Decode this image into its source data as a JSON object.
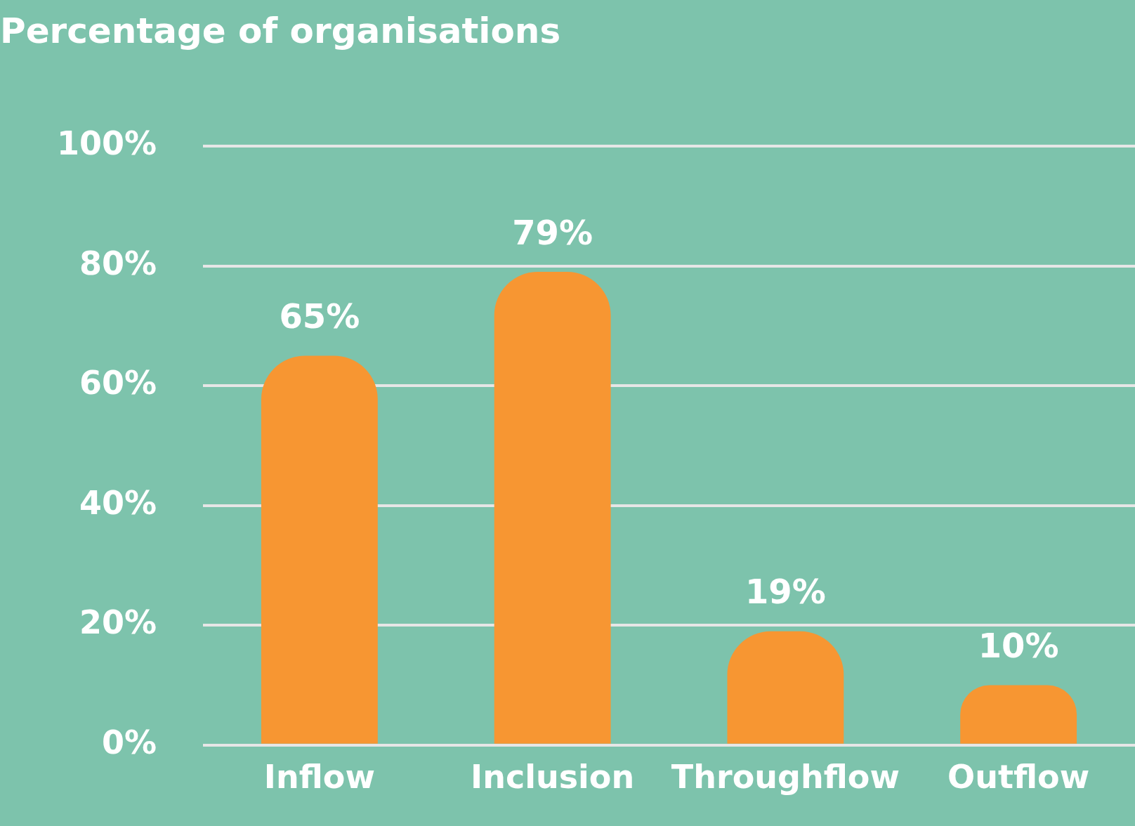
{
  "chart_data": {
    "type": "bar",
    "title": "Percentage of organisations",
    "categories": [
      "Inflow",
      "Inclusion",
      "Throughflow",
      "Outflow"
    ],
    "values": [
      65,
      79,
      19,
      10
    ],
    "color": "#f79632",
    "value_labels": [
      "65%",
      "79%",
      "19%",
      "10%"
    ],
    "ylim": [
      0,
      100
    ],
    "yticks": [
      {
        "value": 0,
        "label": "0%"
      },
      {
        "value": 20,
        "label": "20%"
      },
      {
        "value": 40,
        "label": "40%"
      },
      {
        "value": 60,
        "label": "60%"
      },
      {
        "value": 80,
        "label": "80%"
      },
      {
        "value": 100,
        "label": "100%"
      }
    ],
    "grid": "y"
  }
}
